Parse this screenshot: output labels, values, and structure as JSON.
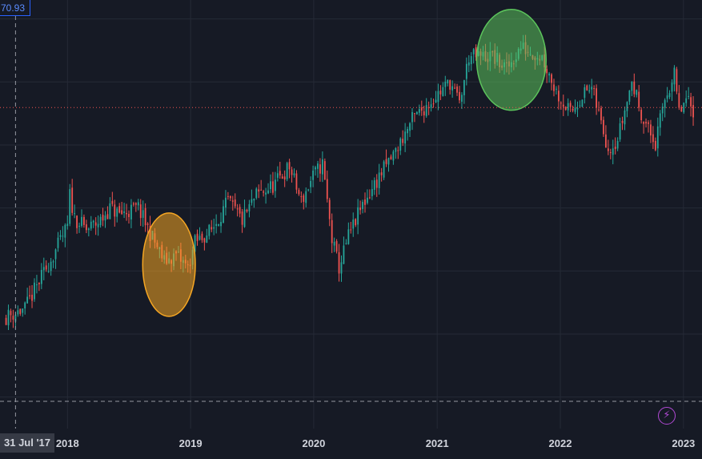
{
  "chart_data": {
    "type": "candlestick",
    "x_ticks": [
      "2018",
      "2019",
      "2020",
      "2021",
      "2022",
      "2023"
    ],
    "crosshair": {
      "date_label": "31 Jul '17",
      "price_label": "70.93"
    },
    "reference_line": 70.93,
    "ylim": [
      20,
      88
    ],
    "xlim": [
      "2017-06-15",
      "2023-02-25"
    ],
    "candle_interval": "weekly",
    "path_estimate": [
      [
        "2017-06-26",
        37.6
      ],
      [
        "2017-08-28",
        39.0
      ],
      [
        "2017-10-16",
        44.0
      ],
      [
        "2017-12-04",
        49.0
      ],
      [
        "2018-01-01",
        52.0
      ],
      [
        "2018-01-08",
        57.0
      ],
      [
        "2018-01-22",
        53.5
      ],
      [
        "2018-02-26",
        51.5
      ],
      [
        "2018-04-09",
        53.0
      ],
      [
        "2018-05-07",
        55.0
      ],
      [
        "2018-06-04",
        54.0
      ],
      [
        "2018-07-30",
        55.0
      ],
      [
        "2018-09-03",
        51.0
      ],
      [
        "2018-10-15",
        46.5
      ],
      [
        "2018-11-19",
        47.5
      ],
      [
        "2018-12-24",
        45.5
      ],
      [
        "2019-01-14",
        49.5
      ],
      [
        "2019-03-04",
        51.5
      ],
      [
        "2019-04-22",
        56.0
      ],
      [
        "2019-06-03",
        53.0
      ],
      [
        "2019-07-15",
        57.0
      ],
      [
        "2019-09-02",
        58.5
      ],
      [
        "2019-10-21",
        61.5
      ],
      [
        "2019-11-25",
        56.0
      ],
      [
        "2019-12-30",
        60.0
      ],
      [
        "2020-01-27",
        62.0
      ],
      [
        "2020-02-24",
        50.0
      ],
      [
        "2020-03-16",
        45.5
      ],
      [
        "2020-04-13",
        50.5
      ],
      [
        "2020-05-25",
        55.5
      ],
      [
        "2020-07-13",
        60.0
      ],
      [
        "2020-08-31",
        64.0
      ],
      [
        "2020-10-19",
        69.0
      ],
      [
        "2020-12-14",
        72.0
      ],
      [
        "2021-02-08",
        75.0
      ],
      [
        "2021-03-08",
        71.5
      ],
      [
        "2021-04-05",
        79.0
      ],
      [
        "2021-06-14",
        79.0
      ],
      [
        "2021-07-26",
        77.0
      ],
      [
        "2021-09-06",
        80.5
      ],
      [
        "2021-11-08",
        79.0
      ],
      [
        "2021-12-20",
        73.5
      ],
      [
        "2022-01-31",
        70.0
      ],
      [
        "2022-03-07",
        73.0
      ],
      [
        "2022-04-04",
        74.0
      ],
      [
        "2022-05-23",
        64.5
      ],
      [
        "2022-06-20",
        66.0
      ],
      [
        "2022-08-01",
        75.0
      ],
      [
        "2022-09-05",
        69.0
      ],
      [
        "2022-10-10",
        65.0
      ],
      [
        "2022-11-07",
        72.5
      ],
      [
        "2022-12-05",
        76.0
      ],
      [
        "2022-12-19",
        70.0
      ],
      [
        "2023-01-09",
        72.0
      ],
      [
        "2023-01-30",
        70.5
      ]
    ],
    "highlights": [
      {
        "shape": "circle",
        "color": "#f5a623",
        "center_date": "2018-10-29",
        "center_value": 46.0,
        "radius_x_days": 78,
        "radius_y_value": 8.2
      },
      {
        "shape": "ellipse",
        "color": "#5cc45c",
        "center_date": "2021-08-09",
        "center_value": 78.5,
        "radius_x_days": 103,
        "radius_y_value": 8.0
      }
    ],
    "colors": {
      "up": "#26a69a",
      "down": "#ef5350",
      "grid": "#252a36",
      "background": "#161a25",
      "axis_text": "#d1d4dc",
      "price_line": "#ef5350"
    }
  }
}
